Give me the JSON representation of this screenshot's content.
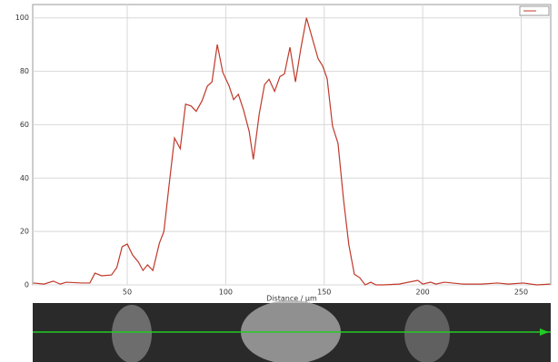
{
  "chart_data": {
    "type": "line",
    "x_label": "Distance / µm",
    "x": [
      2.3,
      7.8,
      12.4,
      16,
      19,
      27,
      31,
      33.6,
      37,
      42,
      44.7,
      47.4,
      50,
      52.7,
      55.7,
      58,
      60.3,
      63,
      66.3,
      68.6,
      71.3,
      74,
      76.9,
      79.6,
      82.4,
      85,
      88,
      90.7,
      93,
      95.7,
      98.5,
      101.7,
      104,
      106.4,
      109,
      111.9,
      114,
      117,
      119.7,
      122,
      124.8,
      127.5,
      129.8,
      132.6,
      135.4,
      138,
      141,
      143.7,
      146.9,
      149.2,
      151.5,
      154.2,
      157,
      159.8,
      162.5,
      165.3,
      168,
      170.8,
      173.6,
      176.3,
      180,
      188,
      197.5,
      200,
      204,
      206.7,
      211,
      220.5,
      229.7,
      238,
      243.5,
      251,
      258,
      264.7
    ],
    "series": [
      {
        "color": "#c0392b",
        "values": [
          0.7,
          0.3,
          1.4,
          0.3,
          1,
          0.7,
          0.7,
          4.4,
          3.4,
          3.7,
          6.5,
          14.3,
          15.3,
          11.2,
          8.5,
          5.4,
          7.5,
          5.4,
          15.6,
          20,
          37.8,
          55,
          51,
          67.7,
          67,
          65,
          69,
          74.5,
          76,
          90,
          79.6,
          74.5,
          69.4,
          71.4,
          65.6,
          57.5,
          47,
          64,
          75,
          77,
          72.5,
          78,
          79,
          89,
          76,
          88,
          100,
          93,
          84.7,
          82,
          77.2,
          59.5,
          53,
          32,
          15,
          4,
          2.7,
          0,
          1,
          0,
          0,
          0.3,
          1.7,
          0.3,
          1,
          0.3,
          1,
          0.3,
          0.3,
          0.7,
          0.3,
          0.7,
          0,
          0.3
        ]
      }
    ],
    "xlim": [
      2,
      265
    ],
    "ylim": [
      0,
      105
    ],
    "xticks": [
      50,
      100,
      150,
      200,
      250
    ],
    "yticks": [
      0,
      20,
      40,
      60,
      80,
      100
    ],
    "grid": true
  }
}
